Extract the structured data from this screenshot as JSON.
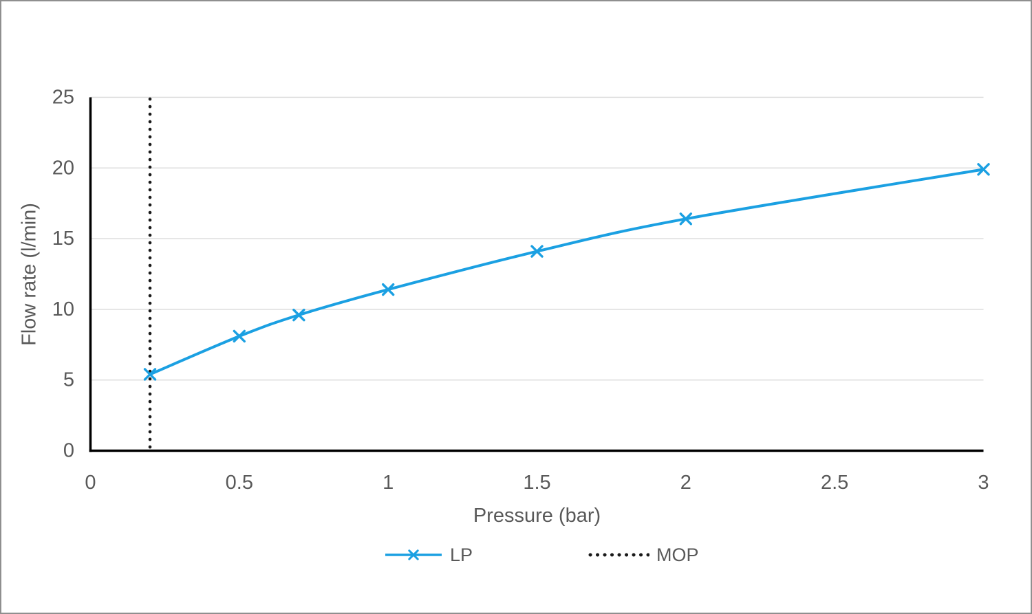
{
  "chart": {
    "title": "",
    "has_window_chrome": false
  },
  "chart_data": {
    "type": "line",
    "title": "",
    "xlabel": "Pressure (bar)",
    "ylabel": "Flow rate (l/min)",
    "xlim": [
      0,
      3
    ],
    "ylim": [
      0,
      25
    ],
    "xticks": [
      "0",
      "0.5",
      "1",
      "1.5",
      "2",
      "2.5",
      "3"
    ],
    "yticks": [
      "0",
      "5",
      "10",
      "15",
      "20",
      "25"
    ],
    "grid": "horizontal-only",
    "legend_position": "bottom-center",
    "colors": {
      "grid": "#d9d9d9",
      "axis": "#000000",
      "tick_text": "#595959",
      "frame_border": "#8f8f8f"
    },
    "series": [
      {
        "name": "LP",
        "style": "smooth-line-with-x-markers",
        "color": "#1ba0e2",
        "x": [
          0.2,
          0.5,
          0.7,
          1.0,
          1.5,
          2.0,
          3.0
        ],
        "y": [
          5.4,
          8.1,
          9.6,
          11.4,
          14.1,
          16.4,
          19.9
        ]
      },
      {
        "name": "MOP",
        "style": "vertical-dotted-line",
        "color": "#1a1a1a",
        "x_value": 0.2,
        "y_span": [
          0,
          25
        ]
      }
    ]
  }
}
